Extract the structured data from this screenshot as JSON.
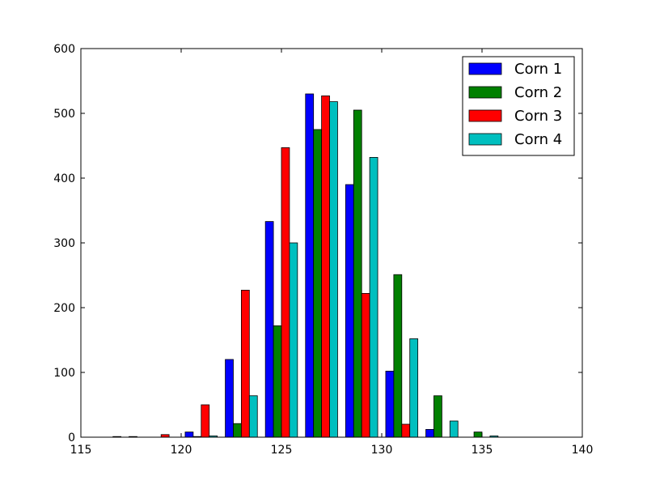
{
  "chart_data": {
    "type": "bar",
    "title": "",
    "xlabel": "",
    "ylabel": "",
    "xlim": [
      115,
      140
    ],
    "ylim": [
      0,
      600
    ],
    "xticks": [
      115,
      120,
      125,
      130,
      135,
      140
    ],
    "yticks": [
      0,
      100,
      200,
      300,
      400,
      500,
      600
    ],
    "bin_edges": [
      116,
      118,
      120,
      122,
      124,
      126,
      128,
      130,
      132,
      134,
      136
    ],
    "legend": {
      "position": "upper right"
    },
    "grid": false,
    "series": [
      {
        "name": "Corn 1",
        "color": "#0000ff",
        "values": [
          0,
          0,
          8,
          120,
          333,
          530,
          390,
          102,
          12,
          0
        ]
      },
      {
        "name": "Corn 2",
        "color": "#008000",
        "values": [
          1,
          0,
          1,
          21,
          172,
          475,
          505,
          251,
          64,
          8
        ]
      },
      {
        "name": "Corn 3",
        "color": "#ff0000",
        "values": [
          0,
          4,
          50,
          227,
          447,
          527,
          222,
          20,
          0,
          0
        ]
      },
      {
        "name": "Corn 4",
        "color": "#00bfbf",
        "values": [
          1,
          0,
          2,
          64,
          300,
          518,
          432,
          152,
          25,
          2
        ]
      }
    ]
  }
}
